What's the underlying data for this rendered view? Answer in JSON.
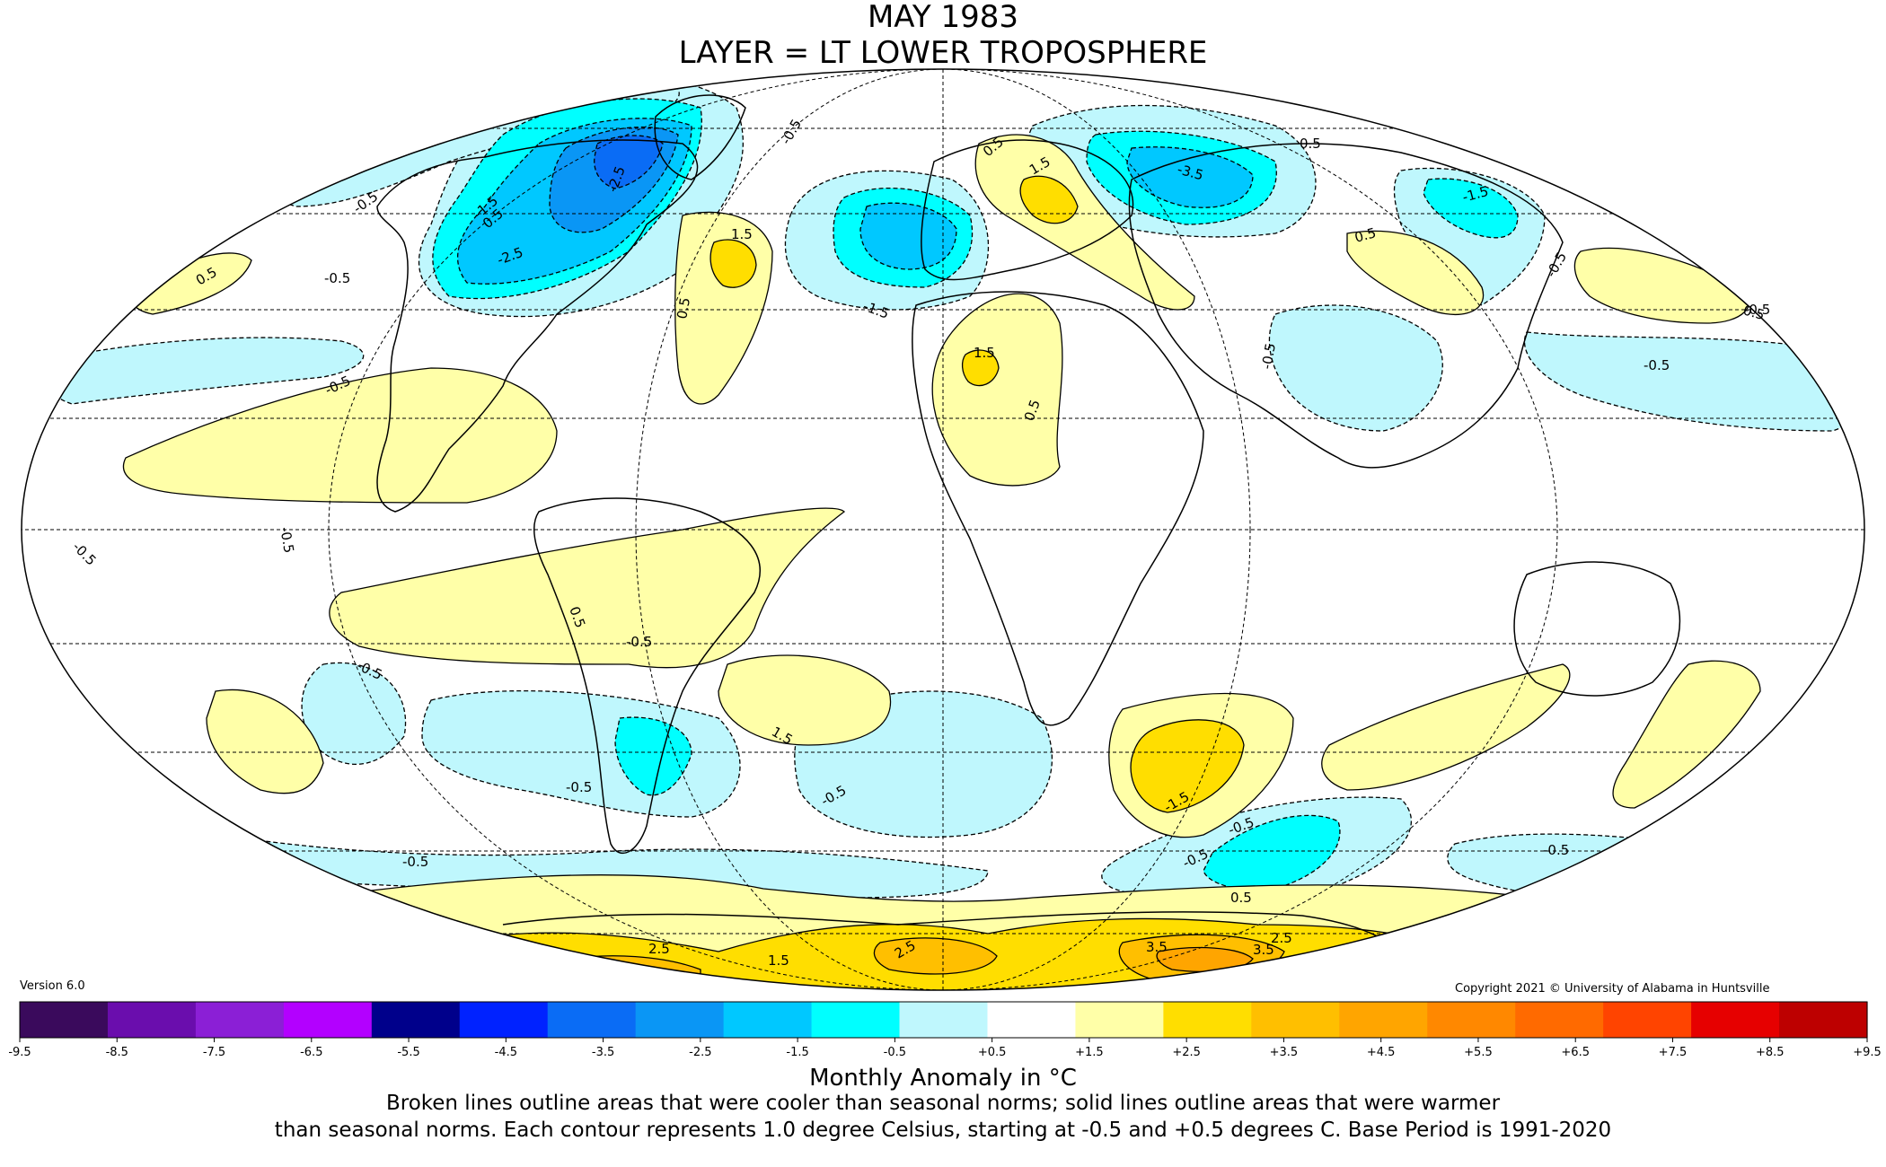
{
  "title": {
    "line1": "MAY 1983",
    "line2": "LAYER = LT LOWER TROPOSPHERE"
  },
  "version": "Version 6.0",
  "copyright": "Copyright 2021 © University of Alabama in Huntsville",
  "colorbar": {
    "label": "Monthly Anomaly in °C",
    "ticks": [
      "-9.5",
      "-8.5",
      "-7.5",
      "-6.5",
      "-5.5",
      "-4.5",
      "-3.5",
      "-2.5",
      "-1.5",
      "-0.5",
      "+0.5",
      "+1.5",
      "+2.5",
      "+3.5",
      "+4.5",
      "+5.5",
      "+6.5",
      "+7.5",
      "+8.5",
      "+9.5"
    ],
    "colors": [
      "#3a0a5c",
      "#6a0dad",
      "#8b1fd6",
      "#b300ff",
      "#00008b",
      "#0022ff",
      "#0a6cf5",
      "#0a96f5",
      "#00c8ff",
      "#00ffff",
      "#bff7fd",
      "#ffffff",
      "#ffffa8",
      "#ffde00",
      "#ffbf00",
      "#ffa500",
      "#ff8800",
      "#ff6a00",
      "#ff4400",
      "#e60000",
      "#bd0000"
    ]
  },
  "notes": {
    "line1": "Broken lines outline areas that were cooler than seasonal norms; solid lines outline areas that were warmer",
    "line2": "than seasonal norms. Each contour represents 1.0 degree Celsius, starting at -0.5 and +0.5 degrees C. Base Period is 1991-2020"
  },
  "map": {
    "projection": "Mollweide",
    "palette": {
      "cool1": "#bff7fd",
      "cool2": "#00ffff",
      "cool3": "#00c8ff",
      "cool4": "#0a96f5",
      "cool5": "#0a6cf5",
      "warm1": "#ffffa8",
      "warm2": "#ffde00",
      "warm3": "#ffbf00",
      "warm4": "#ffa500"
    },
    "contour_labels": [
      {
        "text": "-0.5"
      },
      {
        "text": "-0.5"
      },
      {
        "text": "0.5"
      },
      {
        "text": "-2.5"
      },
      {
        "text": "-2.5"
      },
      {
        "text": "-1.5"
      },
      {
        "text": "0.5"
      },
      {
        "text": "1.5"
      },
      {
        "text": "0.5"
      },
      {
        "text": "-0.5"
      },
      {
        "text": "0.5"
      },
      {
        "text": "-1.5"
      },
      {
        "text": "-3.5"
      },
      {
        "text": "-1.5"
      },
      {
        "text": "0.5"
      },
      {
        "text": "1.5"
      },
      {
        "text": "1.5"
      },
      {
        "text": "0.5"
      },
      {
        "text": "-0.5"
      },
      {
        "text": "0.5"
      },
      {
        "text": "-0.5"
      },
      {
        "text": "-0.5"
      },
      {
        "text": "-0.5"
      },
      {
        "text": "0.5"
      },
      {
        "text": "-0.5"
      },
      {
        "text": "-0.5"
      },
      {
        "text": "-0.5"
      },
      {
        "text": "-0.5"
      },
      {
        "text": "-0.5"
      },
      {
        "text": "0.5"
      },
      {
        "text": "-0.5"
      },
      {
        "text": "1.5"
      },
      {
        "text": "-0.5"
      },
      {
        "text": "-1.5"
      },
      {
        "text": "0.5"
      },
      {
        "text": "-0.5"
      },
      {
        "text": "-0.5"
      },
      {
        "text": "2.5"
      },
      {
        "text": "1.5"
      },
      {
        "text": "2.5"
      },
      {
        "text": "3.5"
      },
      {
        "text": "3.5"
      },
      {
        "text": "2.5"
      },
      {
        "text": "-0.5"
      },
      {
        "text": "-0.5"
      }
    ]
  }
}
